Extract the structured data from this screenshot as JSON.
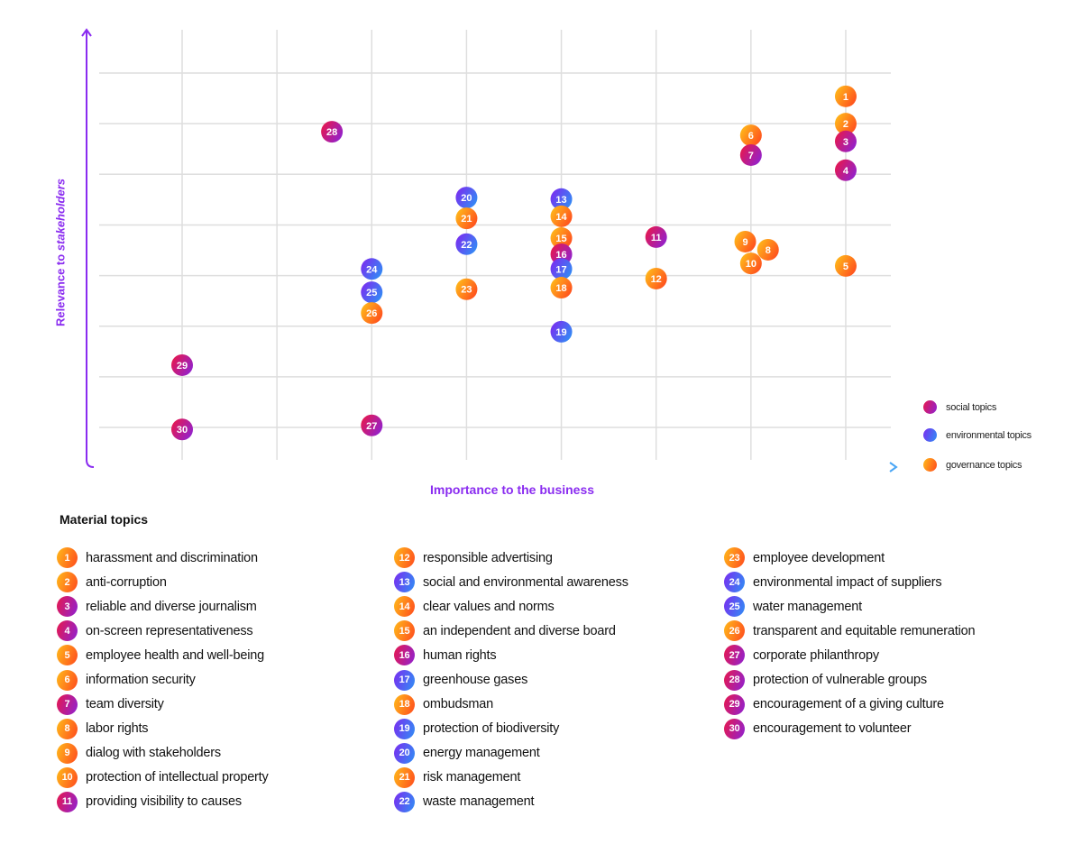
{
  "chart_data": {
    "type": "scatter",
    "xlabel": "Importance to the business",
    "ylabel_parts": [
      "Relevance to ",
      "stakeholders"
    ],
    "grid": true,
    "x_gridlines": [
      1,
      2,
      3,
      4,
      5,
      6,
      7,
      8
    ],
    "y_gridlines": [
      1,
      2,
      3,
      4,
      5,
      6,
      7,
      8
    ],
    "xlim": [
      0,
      8.5
    ],
    "ylim": [
      0.2,
      9.5
    ],
    "legend_placement": "bottom-right",
    "categories": {
      "social": {
        "label": "social topics",
        "colors": [
          "#e8184c",
          "#8e22d4"
        ]
      },
      "environmental": {
        "label": "environmental topics",
        "colors": [
          "#7a2cf0",
          "#2f90f5"
        ]
      },
      "governance": {
        "label": "governance topics",
        "colors": [
          "#ffbb1a",
          "#ff4a1e"
        ]
      }
    },
    "points": [
      {
        "n": "1",
        "x": 8,
        "y": 7.54,
        "cat": "governance"
      },
      {
        "n": "2",
        "x": 8,
        "y": 7.0,
        "cat": "governance"
      },
      {
        "n": "3",
        "x": 8,
        "y": 6.65,
        "cat": "social"
      },
      {
        "n": "4",
        "x": 8,
        "y": 6.08,
        "cat": "social"
      },
      {
        "n": "5",
        "x": 8,
        "y": 4.19,
        "cat": "governance"
      },
      {
        "n": "6",
        "x": 7,
        "y": 6.77,
        "cat": "governance"
      },
      {
        "n": "7",
        "x": 7,
        "y": 6.38,
        "cat": "social"
      },
      {
        "n": "8",
        "x": 7.18,
        "y": 4.51,
        "cat": "governance"
      },
      {
        "n": "9",
        "x": 6.94,
        "y": 4.67,
        "cat": "governance"
      },
      {
        "n": "10",
        "x": 7,
        "y": 4.24,
        "cat": "governance"
      },
      {
        "n": "11",
        "x": 6,
        "y": 4.76,
        "cat": "social"
      },
      {
        "n": "12",
        "x": 6,
        "y": 3.94,
        "cat": "governance"
      },
      {
        "n": "13",
        "x": 5,
        "y": 5.51,
        "cat": "environmental"
      },
      {
        "n": "14",
        "x": 5,
        "y": 5.17,
        "cat": "governance"
      },
      {
        "n": "15",
        "x": 5,
        "y": 4.74,
        "cat": "governance"
      },
      {
        "n": "16",
        "x": 5,
        "y": 4.42,
        "cat": "social"
      },
      {
        "n": "17",
        "x": 5,
        "y": 4.13,
        "cat": "environmental"
      },
      {
        "n": "18",
        "x": 5,
        "y": 3.76,
        "cat": "governance"
      },
      {
        "n": "19",
        "x": 5,
        "y": 2.89,
        "cat": "environmental"
      },
      {
        "n": "20",
        "x": 4,
        "y": 5.54,
        "cat": "environmental"
      },
      {
        "n": "21",
        "x": 4,
        "y": 5.13,
        "cat": "governance"
      },
      {
        "n": "22",
        "x": 4,
        "y": 4.62,
        "cat": "environmental"
      },
      {
        "n": "23",
        "x": 4,
        "y": 3.73,
        "cat": "governance"
      },
      {
        "n": "24",
        "x": 3,
        "y": 4.13,
        "cat": "environmental"
      },
      {
        "n": "25",
        "x": 3,
        "y": 3.67,
        "cat": "environmental"
      },
      {
        "n": "26",
        "x": 3,
        "y": 3.26,
        "cat": "governance"
      },
      {
        "n": "27",
        "x": 3,
        "y": 1.04,
        "cat": "social"
      },
      {
        "n": "28",
        "x": 2.58,
        "y": 6.84,
        "cat": "social"
      },
      {
        "n": "29",
        "x": 1,
        "y": 2.23,
        "cat": "social"
      },
      {
        "n": "30",
        "x": 1,
        "y": 0.96,
        "cat": "social"
      }
    ]
  },
  "topics_title": "Material topics",
  "topics": [
    {
      "n": "1",
      "label": "harassment and discrimination",
      "cat": "governance"
    },
    {
      "n": "2",
      "label": "anti-corruption",
      "cat": "governance"
    },
    {
      "n": "3",
      "label": "reliable and diverse journalism",
      "cat": "social"
    },
    {
      "n": "4",
      "label": "on-screen representativeness",
      "cat": "social"
    },
    {
      "n": "5",
      "label": "employee health and well-being",
      "cat": "governance"
    },
    {
      "n": "6",
      "label": "information security",
      "cat": "governance"
    },
    {
      "n": "7",
      "label": "team diversity",
      "cat": "social"
    },
    {
      "n": "8",
      "label": "labor rights",
      "cat": "governance"
    },
    {
      "n": "9",
      "label": "dialog with stakeholders",
      "cat": "governance"
    },
    {
      "n": "10",
      "label": "protection of intellectual property",
      "cat": "governance"
    },
    {
      "n": "11",
      "label": "providing visibility to causes",
      "cat": "social"
    },
    {
      "n": "12",
      "label": "responsible advertising",
      "cat": "governance"
    },
    {
      "n": "13",
      "label": "social and environmental awareness",
      "cat": "environmental"
    },
    {
      "n": "14",
      "label": "clear values and norms",
      "cat": "governance"
    },
    {
      "n": "15",
      "label": "an independent and diverse board",
      "cat": "governance"
    },
    {
      "n": "16",
      "label": "human rights",
      "cat": "social"
    },
    {
      "n": "17",
      "label": "greenhouse gases",
      "cat": "environmental"
    },
    {
      "n": "18",
      "label": "ombudsman",
      "cat": "governance"
    },
    {
      "n": "19",
      "label": "protection of biodiversity",
      "cat": "environmental"
    },
    {
      "n": "20",
      "label": "energy management",
      "cat": "environmental"
    },
    {
      "n": "21",
      "label": "risk management",
      "cat": "governance"
    },
    {
      "n": "22",
      "label": "waste management",
      "cat": "environmental"
    },
    {
      "n": "23",
      "label": "employee development",
      "cat": "governance"
    },
    {
      "n": "24",
      "label": "environmental impact of suppliers",
      "cat": "environmental"
    },
    {
      "n": "25",
      "label": "water management",
      "cat": "environmental"
    },
    {
      "n": "26",
      "label": "transparent and equitable remuneration",
      "cat": "governance"
    },
    {
      "n": "27",
      "label": "corporate philanthropy",
      "cat": "social"
    },
    {
      "n": "28",
      "label": "protection of vulnerable groups",
      "cat": "social"
    },
    {
      "n": "29",
      "label": "encouragement of a giving culture",
      "cat": "social"
    },
    {
      "n": "30",
      "label": "encouragement to volunteer",
      "cat": "social"
    }
  ]
}
